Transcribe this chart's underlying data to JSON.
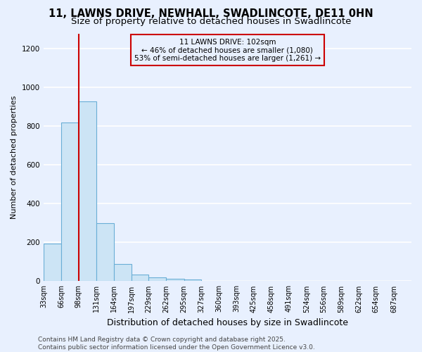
{
  "title": "11, LAWNS DRIVE, NEWHALL, SWADLINCOTE, DE11 0HN",
  "subtitle": "Size of property relative to detached houses in Swadlincote",
  "xlabel": "Distribution of detached houses by size in Swadlincote",
  "ylabel": "Number of detached properties",
  "bar_lefts": [
    33,
    66,
    98,
    131,
    164,
    197,
    229,
    262,
    295,
    327,
    360,
    393,
    425,
    458,
    491,
    524,
    556,
    589,
    622,
    654
  ],
  "bar_widths": [
    33,
    32,
    33,
    33,
    33,
    32,
    33,
    33,
    32,
    33,
    33,
    32,
    33,
    33,
    33,
    32,
    33,
    33,
    32,
    33
  ],
  "bar_heights": [
    195,
    820,
    930,
    300,
    90,
    35,
    20,
    12,
    8,
    3,
    1,
    0,
    0,
    0,
    0,
    0,
    0,
    0,
    0,
    0
  ],
  "bar_color": "#cce4f5",
  "bar_edge_color": "#6aaed6",
  "vline_x": 98,
  "vline_color": "#cc0000",
  "annotation_title": "11 LAWNS DRIVE: 102sqm",
  "annotation_line2": "← 46% of detached houses are smaller (1,080)",
  "annotation_line3": "53% of semi-detached houses are larger (1,261) →",
  "annotation_box_color": "#cc0000",
  "ylim": [
    0,
    1280
  ],
  "yticks": [
    0,
    200,
    400,
    600,
    800,
    1000,
    1200
  ],
  "tick_labels": [
    "33sqm",
    "66sqm",
    "98sqm",
    "131sqm",
    "164sqm",
    "197sqm",
    "229sqm",
    "262sqm",
    "295sqm",
    "327sqm",
    "360sqm",
    "393sqm",
    "425sqm",
    "458sqm",
    "491sqm",
    "524sqm",
    "556sqm",
    "589sqm",
    "622sqm",
    "654sqm",
    "687sqm"
  ],
  "footer_line1": "Contains HM Land Registry data © Crown copyright and database right 2025.",
  "footer_line2": "Contains public sector information licensed under the Open Government Licence v3.0.",
  "bg_color": "#e8f0fe",
  "plot_bg_color": "#e8f0fe",
  "grid_color": "#ffffff",
  "title_fontsize": 10.5,
  "subtitle_fontsize": 9.5,
  "ylabel_fontsize": 8,
  "xlabel_fontsize": 9,
  "tick_fontsize": 7,
  "footer_fontsize": 6.5
}
